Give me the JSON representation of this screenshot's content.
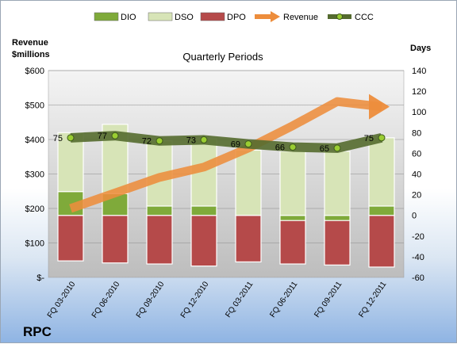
{
  "chart_data": {
    "type": "bar",
    "title": "Quarterly Periods",
    "company": "RPC",
    "left_axis": {
      "label_line1": "Revenue",
      "label_line2": "$millions",
      "ylim": [
        0,
        600
      ],
      "ticks": [
        0,
        100,
        200,
        300,
        400,
        500,
        600
      ],
      "tick_labels": [
        "$-",
        "$100",
        "$200",
        "$300",
        "$400",
        "$500",
        "$600"
      ]
    },
    "right_axis": {
      "label": "Days",
      "ylim": [
        -60,
        140
      ],
      "ticks": [
        -60,
        -40,
        -20,
        0,
        20,
        40,
        60,
        80,
        100,
        120,
        140
      ],
      "tick_labels": [
        "-60",
        "-40",
        "-20",
        "0",
        "20",
        "40",
        "60",
        "80",
        "100",
        "120",
        "140"
      ]
    },
    "categories": [
      "FQ 03-2010",
      "FQ 06-2010",
      "FQ 09-2010",
      "FQ 12-2010",
      "FQ 03-2011",
      "FQ 06-2011",
      "FQ 09-2011",
      "FQ 12-2011"
    ],
    "legend_position": "top",
    "series": [
      {
        "name": "DIO",
        "kind": "stacked-bar",
        "axis": "right",
        "color": "#7faa3a",
        "values": [
          23,
          21,
          9,
          9,
          0,
          -5,
          -5,
          9
        ]
      },
      {
        "name": "DSO",
        "kind": "stacked-bar",
        "axis": "right",
        "color": "#d7e4b7",
        "values": [
          57,
          67,
          63,
          65,
          63,
          62,
          62,
          66
        ]
      },
      {
        "name": "DPO",
        "kind": "stacked-bar",
        "axis": "right",
        "color": "#b54a4a",
        "values": [
          -44,
          -46,
          -47,
          -49,
          -45,
          -47,
          -48,
          -50
        ]
      },
      {
        "name": "Revenue",
        "kind": "line",
        "axis": "left",
        "color": "#ed8d3c",
        "values": [
          200,
          245,
          290,
          320,
          375,
          440,
          510,
          495
        ]
      },
      {
        "name": "CCC",
        "kind": "line",
        "axis": "right",
        "color": "#556b2f",
        "values": [
          75,
          77,
          72,
          73,
          69,
          66,
          65,
          75
        ]
      }
    ]
  }
}
